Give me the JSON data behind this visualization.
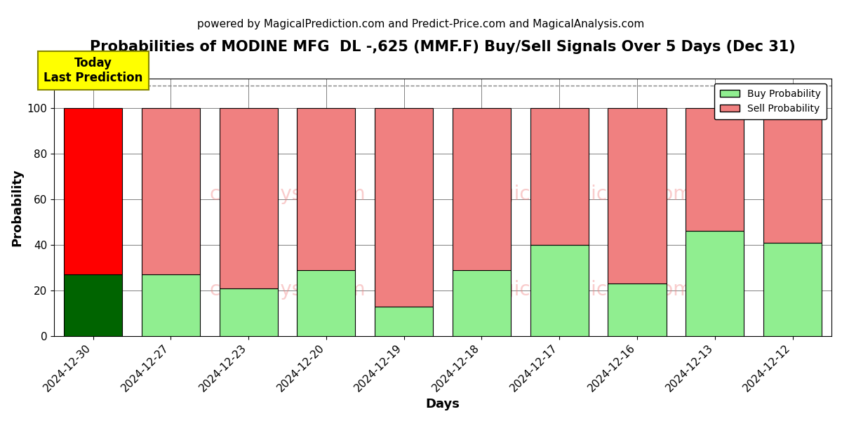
{
  "title": "Probabilities of MODINE MFG  DL -,625 (MMF.F) Buy/Sell Signals Over 5 Days (Dec 31)",
  "subtitle": "powered by MagicalPrediction.com and Predict-Price.com and MagicalAnalysis.com",
  "xlabel": "Days",
  "ylabel": "Probability",
  "dates": [
    "2024-12-30",
    "2024-12-27",
    "2024-12-23",
    "2024-12-20",
    "2024-12-19",
    "2024-12-18",
    "2024-12-17",
    "2024-12-16",
    "2024-12-13",
    "2024-12-12"
  ],
  "buy_probs": [
    27,
    27,
    21,
    29,
    13,
    29,
    40,
    23,
    46,
    41
  ],
  "sell_probs": [
    73,
    73,
    79,
    71,
    87,
    71,
    60,
    77,
    54,
    59
  ],
  "buy_colors": [
    "#006400",
    "#90EE90",
    "#90EE90",
    "#90EE90",
    "#90EE90",
    "#90EE90",
    "#90EE90",
    "#90EE90",
    "#90EE90",
    "#90EE90"
  ],
  "sell_colors": [
    "#FF0000",
    "#F08080",
    "#F08080",
    "#F08080",
    "#F08080",
    "#F08080",
    "#F08080",
    "#F08080",
    "#F08080",
    "#F08080"
  ],
  "bar_edge_color": "#000000",
  "ylim": [
    0,
    113
  ],
  "dashed_line_y": 110,
  "today_label": "Today\nLast Prediction",
  "today_label_bg": "#FFFF00",
  "watermark_lines": [
    "MagicalAnalysis.com    MagicalPrediction.com",
    "calAnalysis.com    MagicalPrediction.com"
  ],
  "watermark_text1": "calAnalysis.com",
  "watermark_text2": "MagicalPrediction.com",
  "legend_buy_label": "Buy Probability",
  "legend_sell_label": "Sell Probability",
  "title_fontsize": 15,
  "subtitle_fontsize": 11,
  "axis_label_fontsize": 13,
  "tick_fontsize": 11,
  "bar_width": 0.75
}
